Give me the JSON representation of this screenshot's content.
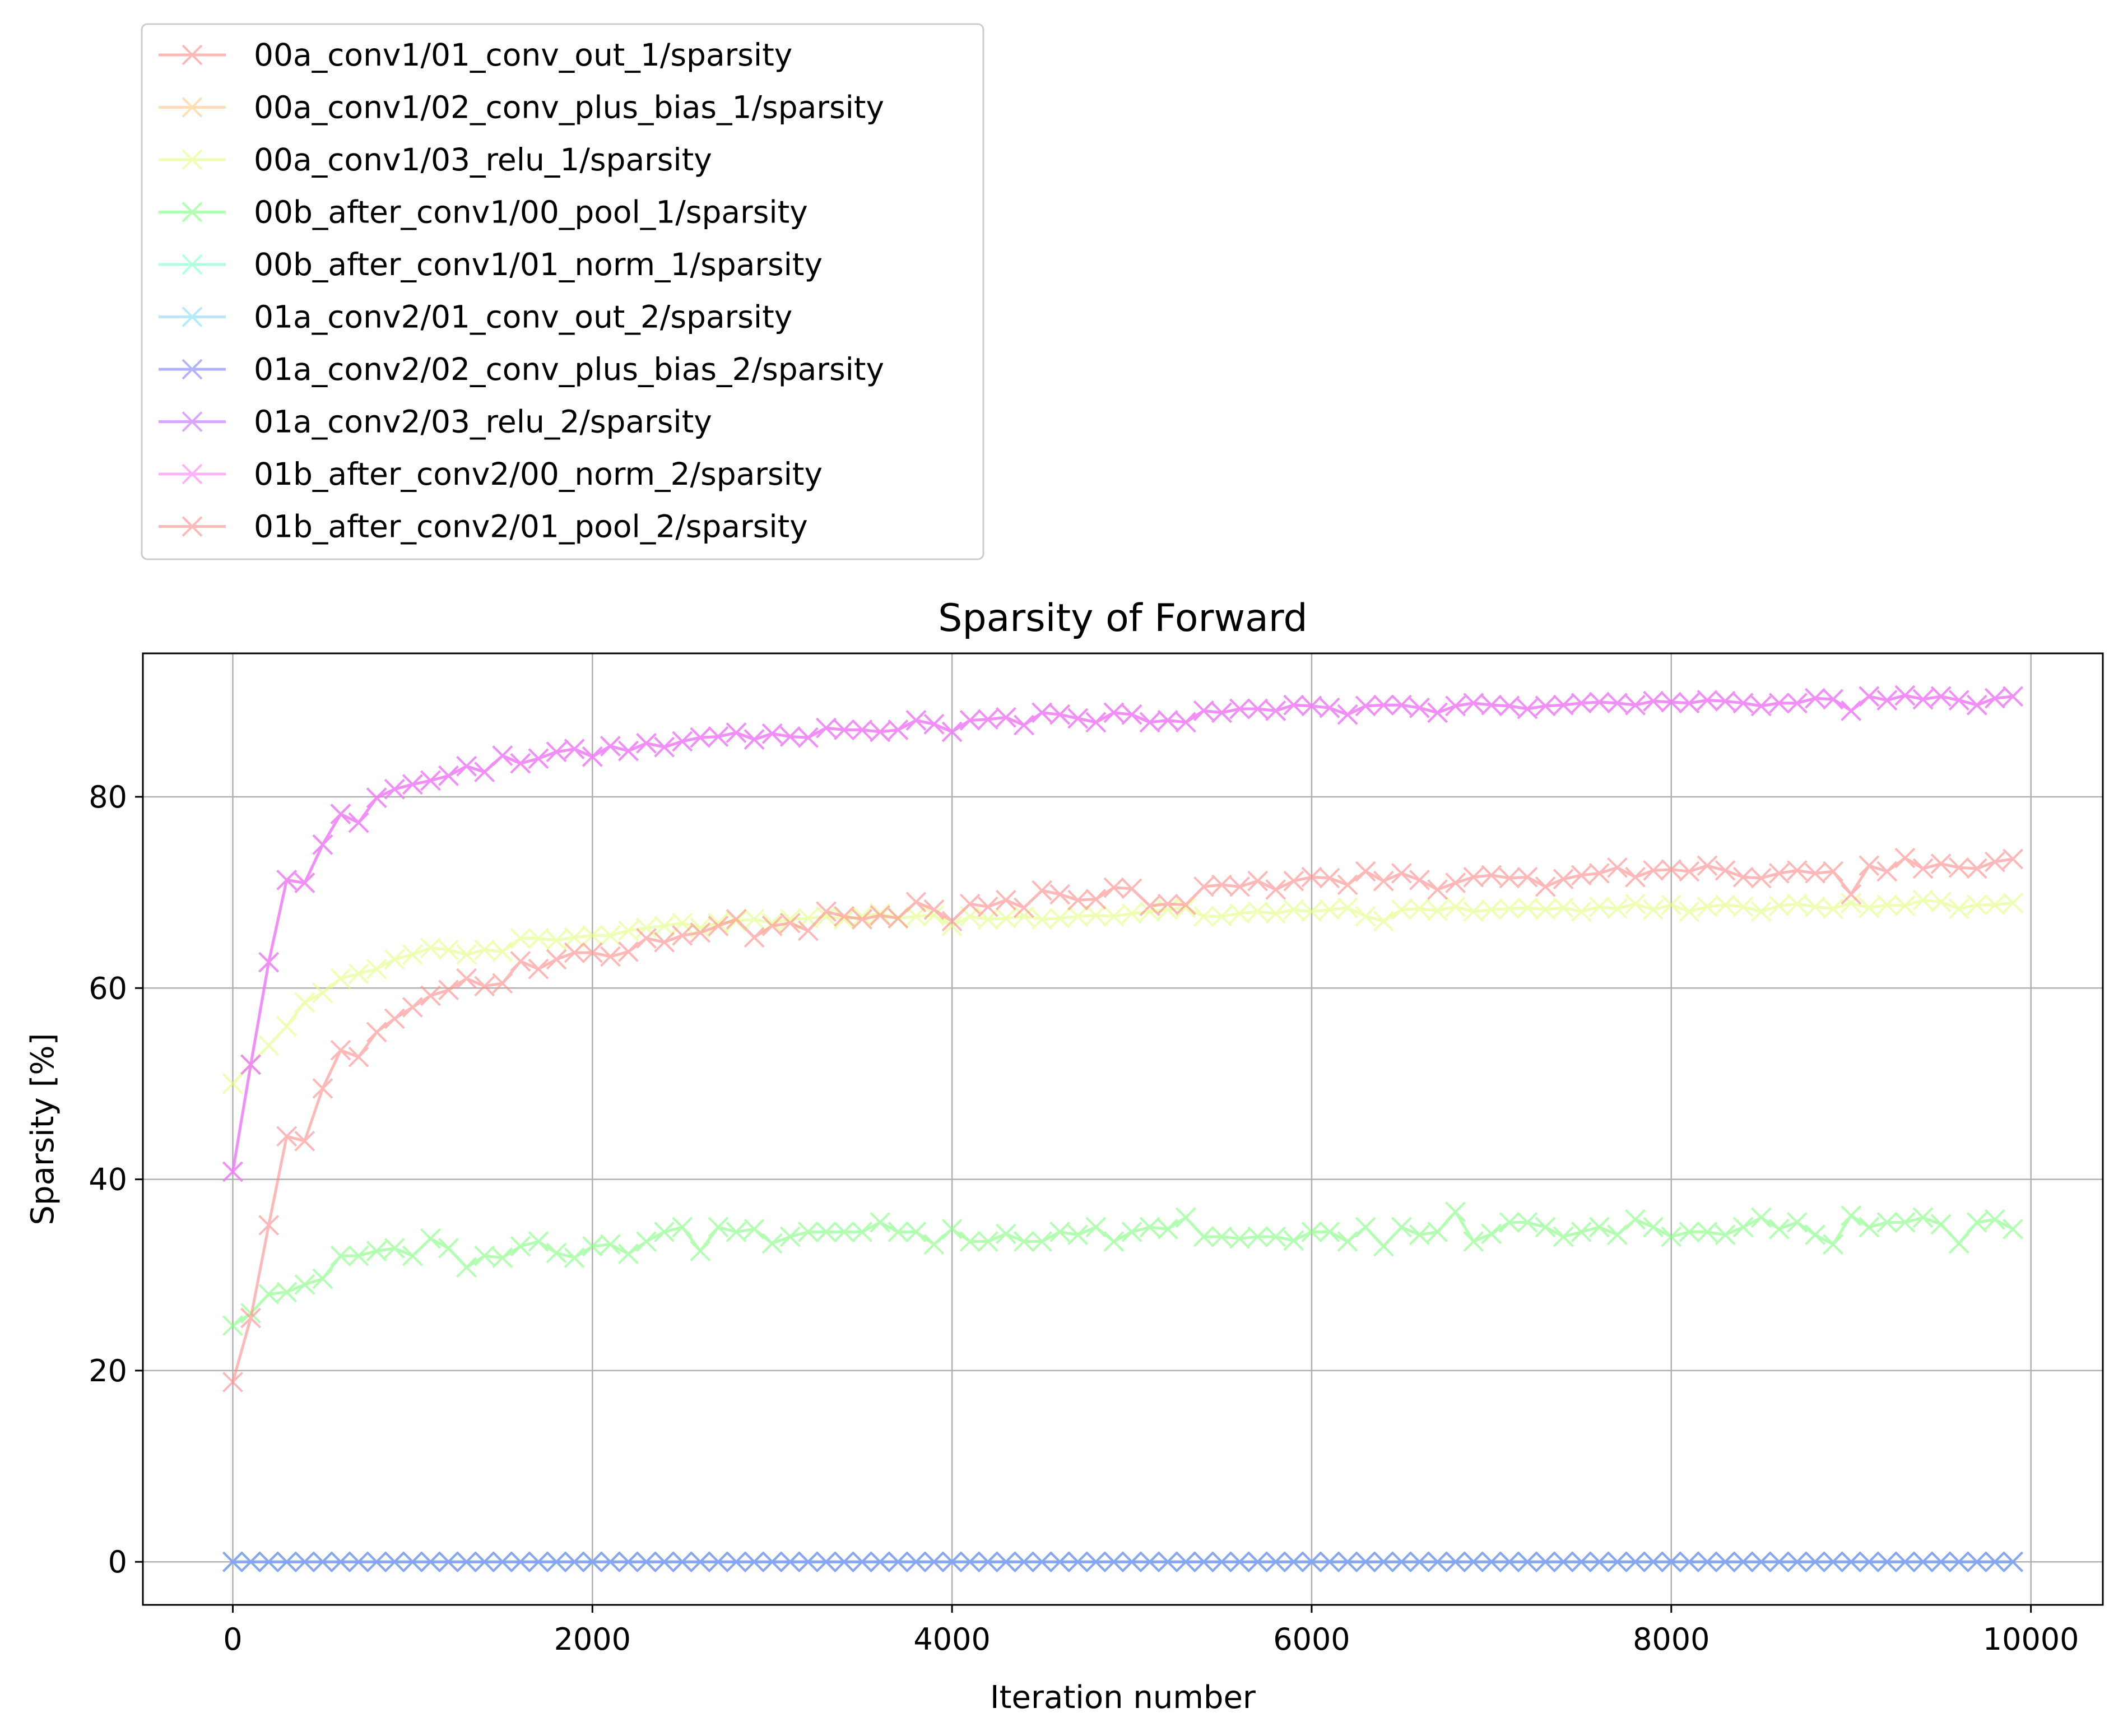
{
  "chart_data": {
    "type": "line",
    "title": "Sparsity of Forward",
    "xlabel": "Iteration number",
    "ylabel": "Sparsity [%]",
    "xlim": [
      -500,
      10400
    ],
    "ylim": [
      -4.5,
      95
    ],
    "xticks": [
      0,
      2000,
      4000,
      6000,
      8000,
      10000
    ],
    "yticks": [
      0,
      20,
      40,
      60,
      80
    ],
    "grid": true,
    "legend_position": "upper-left, above plot",
    "marker": "x",
    "x_sampling": "every 100 iterations, 0 to 9900",
    "series": [
      {
        "name": "00a_conv1/01_conv_out_1/sparsity",
        "color": "#ff8a8a",
        "values": [
          0
        ]
      },
      {
        "name": "00a_conv1/02_conv_plus_bias_1/sparsity",
        "color": "#ffcb80",
        "values": [
          0
        ]
      },
      {
        "name": "00a_conv1/03_relu_1/sparsity",
        "color": "#e0ff80",
        "values": [
          50,
          52,
          54,
          56,
          58.5,
          59.5,
          61,
          61.5,
          62,
          63,
          63.5,
          64.2,
          64,
          63.5,
          64,
          63.8,
          65.2,
          65.2,
          65,
          65.3,
          65.5,
          65.5,
          66,
          66.3,
          66.5,
          66.8,
          66.3,
          66.8,
          67,
          67.2,
          66.8,
          67.2,
          67.3,
          67.5,
          67.2,
          67.5,
          67.8,
          67.3,
          67.5,
          67.6,
          66.5,
          67.5,
          67.2,
          67.3,
          67.5,
          67.2,
          67.3,
          67.5,
          67.6,
          67.5,
          67.8,
          68,
          68.2,
          68.4,
          67.5,
          67.5,
          67.8,
          68,
          67.8,
          68.2,
          68,
          68.2,
          68.4,
          67.5,
          67,
          68.2,
          68.3,
          68.1,
          68.5,
          68,
          68.2,
          68.3,
          68.4,
          68.2,
          68.4,
          68,
          68.5,
          68.3,
          68.8,
          68.2,
          68.7,
          68,
          68.5,
          68.7,
          68.5,
          68,
          68.6,
          68.8,
          68.5,
          68.3,
          68.9,
          68.4,
          68.7,
          68.6,
          69.2,
          69,
          68.3,
          68.7,
          68.7,
          68.9
        ]
      },
      {
        "name": "00b_after_conv1/00_pool_1/sparsity",
        "color": "#80ff80",
        "values": [
          24.7,
          26,
          28,
          28.2,
          29,
          29.6,
          32,
          32,
          32.5,
          32.8,
          32,
          33.8,
          32.8,
          30.8,
          32,
          31.8,
          33,
          33.5,
          32.3,
          31.8,
          33,
          33.2,
          32.2,
          33.5,
          34.5,
          35,
          32.5,
          35,
          34.5,
          34.8,
          33.3,
          34,
          34.5,
          34.5,
          34.5,
          34.5,
          35.5,
          34.5,
          34.5,
          33.2,
          34.8,
          33.5,
          33.5,
          34.3,
          33.5,
          33.5,
          34.5,
          34.2,
          35,
          33.5,
          34.5,
          35,
          34.8,
          36,
          34,
          34,
          33.8,
          34,
          34,
          33.6,
          34.5,
          34.5,
          33.5,
          35,
          33,
          35,
          34.2,
          34.5,
          36.6,
          33.5,
          34.3,
          35.5,
          35.5,
          35,
          34,
          34.5,
          35,
          34.2,
          35.8,
          35,
          34,
          34.5,
          34.5,
          34.2,
          35,
          36,
          34.8,
          35.5,
          34.2,
          33.2,
          36.2,
          35,
          35.5,
          35.5,
          36,
          35.3,
          33.3,
          35.5,
          35.8,
          34.8
        ]
      },
      {
        "name": "00b_after_conv1/01_norm_1/sparsity",
        "color": "#80ffca",
        "values": [
          0
        ]
      },
      {
        "name": "01a_conv2/01_conv_out_2/sparsity",
        "color": "#80ddff",
        "values": [
          0
        ]
      },
      {
        "name": "01a_conv2/02_conv_plus_bias_2/sparsity",
        "color": "#8080ff",
        "values": [
          0
        ]
      },
      {
        "name": "01a_conv2/03_relu_2/sparsity",
        "color": "#c86bff",
        "values": [
          40.8,
          52,
          62.7,
          71.3,
          71,
          75,
          78.2,
          77.3,
          79.9,
          80.8,
          81.3,
          81.7,
          82.2,
          83.2,
          82.6,
          84.3,
          83.5,
          84,
          84.7,
          85,
          84.2,
          85.3,
          84.8,
          85.6,
          85.2,
          85.8,
          86.2,
          86.3,
          86.7,
          86,
          86.6,
          86.3,
          86.2,
          87.2,
          87,
          87,
          86.8,
          87,
          88,
          87.6,
          86.8,
          88,
          88.1,
          88.3,
          87.5,
          88.8,
          88.6,
          88.2,
          87.8,
          88.8,
          88.6,
          87.8,
          88,
          87.8,
          89,
          88.8,
          89.2,
          89.2,
          89,
          89.6,
          89.5,
          89.3,
          88.6,
          89.5,
          89.6,
          89.6,
          89.3,
          88.8,
          89.5,
          89.8,
          89.6,
          89.5,
          89.2,
          89.5,
          89.6,
          89.8,
          89.9,
          89.8,
          89.6,
          90,
          89.9,
          89.8,
          90.1,
          90,
          89.8,
          89.5,
          89.8,
          89.8,
          90.3,
          90.2,
          89,
          90.5,
          90.1,
          90.6,
          90.2,
          90.5,
          90.1,
          89.6,
          90.3,
          90.5
        ]
      },
      {
        "name": "01b_after_conv2/00_norm_2/sparsity",
        "color": "#ff80f2",
        "values": [
          40.8,
          52,
          62.7,
          71.3,
          71,
          75,
          78.2,
          77.3,
          79.9,
          80.8,
          81.3,
          81.7,
          82.2,
          83.2,
          82.6,
          84.3,
          83.5,
          84,
          84.7,
          85,
          84.2,
          85.3,
          84.8,
          85.6,
          85.2,
          85.8,
          86.2,
          86.3,
          86.7,
          86,
          86.6,
          86.3,
          86.2,
          87.2,
          87,
          87,
          86.8,
          87,
          88,
          87.6,
          86.8,
          88,
          88.1,
          88.3,
          87.5,
          88.8,
          88.6,
          88.2,
          87.8,
          88.8,
          88.6,
          87.8,
          88,
          87.8,
          89,
          88.8,
          89.2,
          89.2,
          89,
          89.6,
          89.5,
          89.3,
          88.6,
          89.5,
          89.6,
          89.6,
          89.3,
          88.8,
          89.5,
          89.8,
          89.6,
          89.5,
          89.2,
          89.5,
          89.6,
          89.8,
          89.9,
          89.8,
          89.6,
          90,
          89.9,
          89.8,
          90.1,
          90,
          89.8,
          89.5,
          89.8,
          89.8,
          90.3,
          90.2,
          89,
          90.5,
          90.1,
          90.6,
          90.2,
          90.5,
          90.1,
          89.6,
          90.3,
          90.5
        ]
      },
      {
        "name": "01b_after_conv2/01_pool_2/sparsity",
        "color": "#ff8a8a",
        "values": [
          18.8,
          25.5,
          35.2,
          44.5,
          44,
          49.5,
          53.5,
          52.8,
          55.4,
          56.8,
          58,
          59.2,
          59.8,
          61,
          60.2,
          60.5,
          62.8,
          62,
          63,
          63.7,
          63.7,
          63.3,
          63.8,
          65.2,
          64.8,
          65.5,
          65.8,
          66.5,
          67.2,
          65.3,
          66.5,
          66.8,
          66,
          68,
          67.5,
          67.2,
          67.6,
          67.3,
          69,
          68.2,
          67,
          68.8,
          68.5,
          69.2,
          68.4,
          70.2,
          69.8,
          69.2,
          69.3,
          70.5,
          70.4,
          68.6,
          68.8,
          68.7,
          70.6,
          70.8,
          70.6,
          71.2,
          70.3,
          71.2,
          71.6,
          71.5,
          70.8,
          72.2,
          71.2,
          72,
          71.3,
          70.3,
          71,
          71.6,
          71.8,
          71.5,
          71.6,
          70.6,
          71.4,
          71.8,
          72,
          72.6,
          71.6,
          72.3,
          72.4,
          72.2,
          72.8,
          72.3,
          71.6,
          71.5,
          72,
          72.3,
          72,
          72.2,
          69.8,
          72.8,
          72.2,
          73.6,
          72.5,
          73,
          72.6,
          72.5,
          73.2,
          73.5
        ]
      }
    ]
  }
}
